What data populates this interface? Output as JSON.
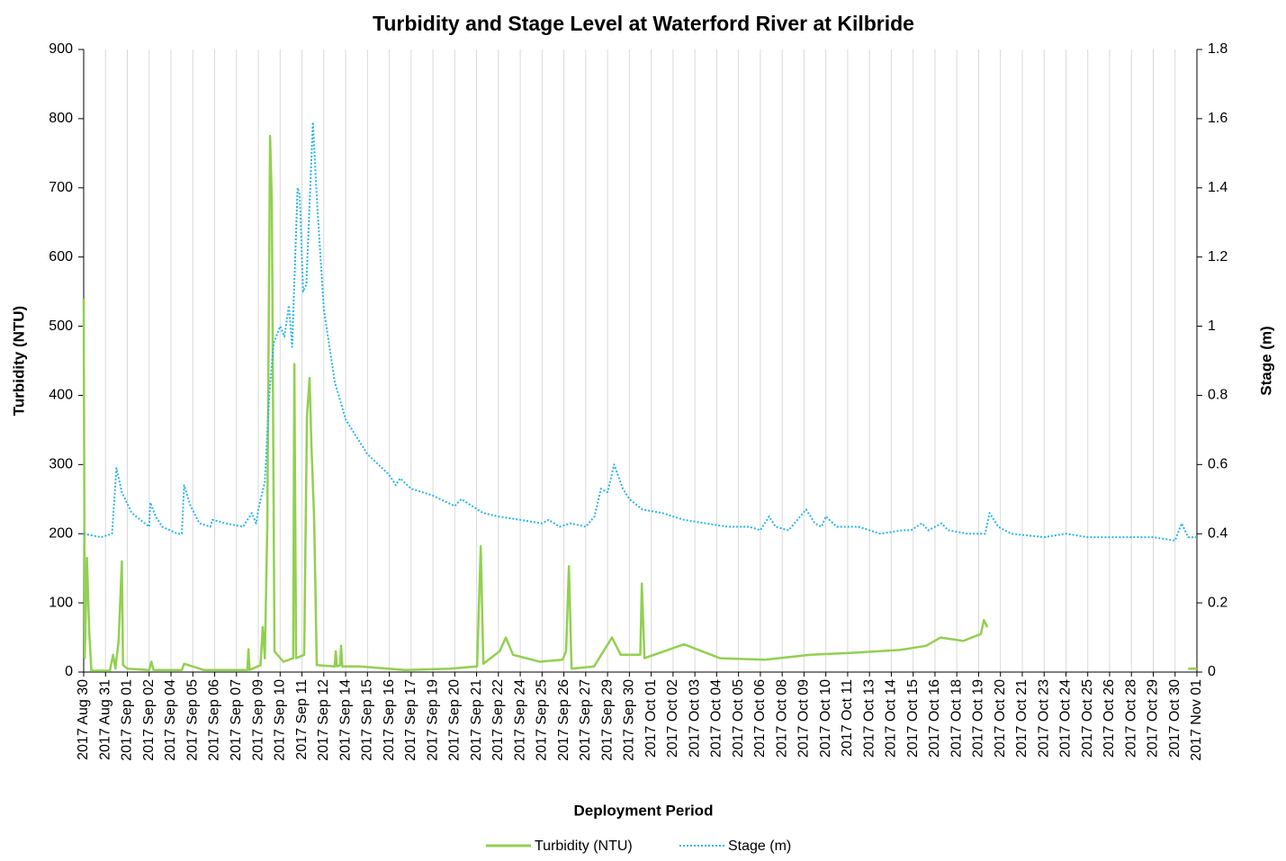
{
  "chart_data": {
    "type": "line",
    "title": "Turbidity and Stage Level at Waterford River at Kilbride",
    "x_label": "Deployment Period",
    "y_label": "Turbidity (NTU)",
    "y2_label": "Stage (m)",
    "xlim": [
      0,
      51
    ],
    "xticks": [
      {
        "value": 0,
        "label": "2017 Aug 30"
      },
      {
        "value": 1,
        "label": "2017 Aug 31"
      },
      {
        "value": 2,
        "label": "2017 Sep 01"
      },
      {
        "value": 3,
        "label": "2017 Sep 02"
      },
      {
        "value": 4,
        "label": "2017 Sep 04"
      },
      {
        "value": 5,
        "label": "2017 Sep 05"
      },
      {
        "value": 6,
        "label": "2017 Sep 06"
      },
      {
        "value": 7,
        "label": "2017 Sep 07"
      },
      {
        "value": 8,
        "label": "2017 Sep 09"
      },
      {
        "value": 9,
        "label": "2017 Sep 10"
      },
      {
        "value": 10,
        "label": "2017 Sep 11"
      },
      {
        "value": 11,
        "label": "2017 Sep 12"
      },
      {
        "value": 12,
        "label": "2017 Sep 14"
      },
      {
        "value": 13,
        "label": "2017 Sep 15"
      },
      {
        "value": 14,
        "label": "2017 Sep 16"
      },
      {
        "value": 15,
        "label": "2017 Sep 17"
      },
      {
        "value": 16,
        "label": "2017 Sep 19"
      },
      {
        "value": 17,
        "label": "2017 Sep 20"
      },
      {
        "value": 18,
        "label": "2017 Sep 21"
      },
      {
        "value": 19,
        "label": "2017 Sep 22"
      },
      {
        "value": 20,
        "label": "2017 Sep 24"
      },
      {
        "value": 21,
        "label": "2017 Sep 25"
      },
      {
        "value": 22,
        "label": "2017 Sep 26"
      },
      {
        "value": 23,
        "label": "2017 Sep 27"
      },
      {
        "value": 24,
        "label": "2017 Sep 29"
      },
      {
        "value": 25,
        "label": "2017 Sep 30"
      },
      {
        "value": 26,
        "label": "2017 Oct 01"
      },
      {
        "value": 27,
        "label": "2017 Oct 02"
      },
      {
        "value": 28,
        "label": "2017 Oct 03"
      },
      {
        "value": 29,
        "label": "2017 Oct 04"
      },
      {
        "value": 30,
        "label": "2017 Oct 05"
      },
      {
        "value": 31,
        "label": "2017 Oct 06"
      },
      {
        "value": 32,
        "label": "2017 Oct 08"
      },
      {
        "value": 33,
        "label": "2017 Oct 09"
      },
      {
        "value": 34,
        "label": "2017 Oct 10"
      },
      {
        "value": 35,
        "label": "2017 Oct 11"
      },
      {
        "value": 36,
        "label": "2017 Oct 13"
      },
      {
        "value": 37,
        "label": "2017 Oct 14"
      },
      {
        "value": 38,
        "label": "2017 Oct 15"
      },
      {
        "value": 39,
        "label": "2017 Oct 16"
      },
      {
        "value": 40,
        "label": "2017 Oct 18"
      },
      {
        "value": 41,
        "label": "2017 Oct 19"
      },
      {
        "value": 42,
        "label": "2017 Oct 20"
      },
      {
        "value": 43,
        "label": "2017 Oct 21"
      },
      {
        "value": 44,
        "label": "2017 Oct 23"
      },
      {
        "value": 45,
        "label": "2017 Oct 24"
      },
      {
        "value": 46,
        "label": "2017 Oct 25"
      },
      {
        "value": 47,
        "label": "2017 Oct 26"
      },
      {
        "value": 48,
        "label": "2017 Oct 28"
      },
      {
        "value": 49,
        "label": "2017 Oct 29"
      },
      {
        "value": 50,
        "label": "2017 Oct 30"
      },
      {
        "value": 51,
        "label": "2017 Nov 01"
      }
    ],
    "ylim": [
      0,
      900
    ],
    "yticks": [
      0,
      100,
      200,
      300,
      400,
      500,
      600,
      700,
      800,
      900
    ],
    "y2lim": [
      0,
      1.8
    ],
    "y2ticks": [
      0,
      0.2,
      0.4,
      0.6,
      0.8,
      1,
      1.2,
      1.4,
      1.6,
      1.8
    ],
    "grid": true,
    "legend": "bottom",
    "series": [
      {
        "name": "Turbidity (NTU)",
        "color": "#92d050",
        "dash": false,
        "x": [
          0,
          0.05,
          0.15,
          0.25,
          0.35,
          1.2,
          1.35,
          1.45,
          1.6,
          1.75,
          1.8,
          2.0,
          3.0,
          3.1,
          3.2,
          4.5,
          4.6,
          5.0,
          5.5,
          7.5,
          7.55,
          7.6,
          8.1,
          8.2,
          8.3,
          8.41,
          8.54,
          8.62,
          8.74,
          9.15,
          9.6,
          9.65,
          9.73,
          10.1,
          10.23,
          10.35,
          10.43,
          10.56,
          10.68,
          11.5,
          11.55,
          11.6,
          11.75,
          11.79,
          11.85,
          12.66,
          14.72,
          16.78,
          18.02,
          18.19,
          18.31,
          19.05,
          19.34,
          19.67,
          20.9,
          21.94,
          22.1,
          22.23,
          22.35,
          23.38,
          24.2,
          24.6,
          25.5,
          25.57,
          25.69,
          27.5,
          29.15,
          31.2,
          33.3,
          35.3,
          37.4,
          38.6,
          39.26,
          40.3,
          41.1,
          41.24,
          41.4,
          41.45,
          50.6,
          51
        ],
        "values": [
          540,
          20,
          165,
          60,
          2,
          2,
          25,
          5,
          45,
          160,
          10,
          5,
          3,
          15,
          3,
          3,
          12,
          8,
          3,
          3,
          33,
          3,
          10,
          65,
          20,
          210,
          775,
          680,
          30,
          15,
          20,
          445,
          20,
          25,
          370,
          425,
          330,
          220,
          10,
          8,
          30,
          8,
          10,
          38,
          8,
          8,
          3,
          5,
          8,
          182,
          12,
          30,
          50,
          25,
          15,
          18,
          30,
          153,
          5,
          8,
          50,
          25,
          25,
          128,
          20,
          40,
          20,
          18,
          25,
          28,
          32,
          38,
          50,
          45,
          55,
          75,
          65,
          null,
          5,
          5
        ]
      },
      {
        "name": "Stage (m)",
        "color": "#29b6e8",
        "dash": true,
        "axis": "y2",
        "x": [
          0,
          0.8,
          1.3,
          1.5,
          1.75,
          2.2,
          2.8,
          3.0,
          3.05,
          3.3,
          3.6,
          4.3,
          4.5,
          4.6,
          4.9,
          5.3,
          5.8,
          5.9,
          6.5,
          7.3,
          7.7,
          7.9,
          8.0,
          8.3,
          8.5,
          8.7,
          9.0,
          9.2,
          9.4,
          9.55,
          9.8,
          9.9,
          10.05,
          10.2,
          10.5,
          10.7,
          11.0,
          11.5,
          12,
          13,
          14,
          14.3,
          14.5,
          15,
          16,
          17,
          17.3,
          17.8,
          18.3,
          19,
          20,
          21,
          21.3,
          21.8,
          22.3,
          23,
          23.4,
          23.7,
          24.0,
          24.3,
          24.7,
          25,
          25.6,
          26.5,
          27.5,
          28.5,
          29.5,
          30.5,
          31.0,
          31.4,
          31.7,
          32.3,
          33.1,
          33.5,
          33.8,
          34.0,
          34.5,
          35.5,
          36.5,
          37.5,
          37.9,
          38.4,
          38.7,
          39.3,
          39.6,
          40.5,
          41.3,
          41.5,
          41.9,
          42.5,
          44,
          45,
          46,
          47,
          48,
          49,
          50,
          50.3,
          50.6,
          51
        ],
        "values": [
          0.4,
          0.39,
          0.4,
          0.59,
          0.52,
          0.46,
          0.43,
          0.42,
          0.49,
          0.45,
          0.42,
          0.4,
          0.4,
          0.54,
          0.48,
          0.43,
          0.42,
          0.44,
          0.43,
          0.42,
          0.46,
          0.43,
          0.47,
          0.55,
          0.8,
          0.95,
          1.0,
          0.97,
          1.06,
          0.94,
          1.4,
          1.38,
          1.1,
          1.12,
          1.59,
          1.35,
          1.05,
          0.84,
          0.73,
          0.63,
          0.57,
          0.54,
          0.56,
          0.53,
          0.51,
          0.48,
          0.5,
          0.48,
          0.46,
          0.45,
          0.44,
          0.43,
          0.44,
          0.42,
          0.43,
          0.42,
          0.45,
          0.53,
          0.52,
          0.6,
          0.53,
          0.5,
          0.47,
          0.46,
          0.44,
          0.43,
          0.42,
          0.42,
          0.41,
          0.45,
          0.42,
          0.41,
          0.47,
          0.43,
          0.42,
          0.45,
          0.42,
          0.42,
          0.4,
          0.41,
          0.41,
          0.43,
          0.41,
          0.43,
          0.41,
          0.4,
          0.4,
          0.46,
          0.42,
          0.4,
          0.39,
          0.4,
          0.39,
          0.39,
          0.39,
          0.39,
          0.38,
          0.43,
          0.39,
          0.39
        ]
      }
    ]
  }
}
